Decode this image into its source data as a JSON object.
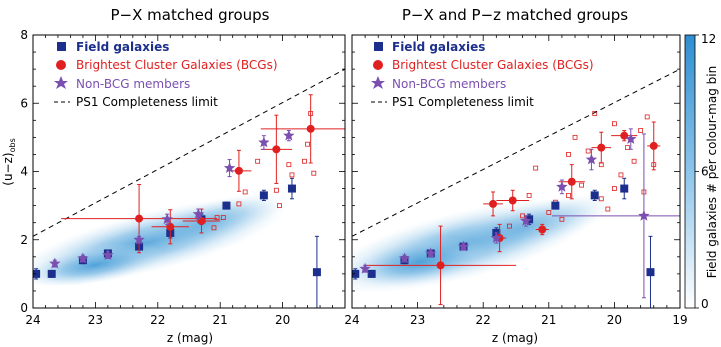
{
  "chart_data": [
    {
      "type": "scatter",
      "title": "P−X matched groups",
      "xlabel": "z (mag)",
      "ylabel": "(u−z)",
      "ylabel_sub": "obs",
      "xlim": [
        24,
        19
      ],
      "ylim": [
        0,
        8
      ],
      "xticks": [
        24,
        23,
        22,
        21,
        20
      ],
      "yticks": [
        0,
        2,
        4,
        6,
        8
      ],
      "legend_position": "top-left",
      "legend": [
        "Field galaxies",
        "Brightest Cluster Galaxies (BCGs)",
        "Non-BCG members",
        "PS1 Completeness limit"
      ],
      "completeness_line": [
        [
          24,
          2.1
        ],
        [
          19,
          7.0
        ]
      ],
      "series": [
        {
          "name": "Field galaxies",
          "color": "#1c2f8c",
          "marker": "square",
          "points": [
            [
              23.95,
              1.0,
              0,
              0.15
            ],
            [
              23.7,
              1.0,
              0,
              0.1
            ],
            [
              23.2,
              1.4,
              0,
              0.1
            ],
            [
              22.8,
              1.6,
              0,
              0.1
            ],
            [
              22.3,
              1.8,
              0,
              0.1
            ],
            [
              21.8,
              2.2,
              0,
              0.15
            ],
            [
              21.3,
              2.6,
              0,
              0.15
            ],
            [
              20.9,
              3.0,
              0,
              0.1
            ],
            [
              20.3,
              3.3,
              0,
              0.15
            ],
            [
              19.85,
              3.5,
              0,
              0.3
            ],
            [
              19.45,
              1.05,
              0,
              1.05
            ]
          ]
        },
        {
          "name": "Brightest Cluster Galaxies (BCGs)",
          "color": "#e02020",
          "marker": "circle",
          "points": [
            [
              22.3,
              2.62,
              1.25,
              1.0
            ],
            [
              21.8,
              2.38,
              0.3,
              0.5
            ],
            [
              21.3,
              2.55,
              0.3,
              0.35
            ],
            [
              20.7,
              4.02,
              0.2,
              0.6
            ],
            [
              20.1,
              4.65,
              0.25,
              1.0
            ],
            [
              19.55,
              5.25,
              0.8,
              1.0
            ]
          ]
        },
        {
          "name": "Non-BCG members",
          "color": "#7a4fb0",
          "marker": "star",
          "points": [
            [
              23.65,
              1.3,
              0,
              0.1
            ],
            [
              23.2,
              1.45,
              0,
              0.1
            ],
            [
              22.8,
              1.55,
              0,
              0.1
            ],
            [
              22.3,
              2.0,
              0,
              0.1
            ],
            [
              21.85,
              2.6,
              0,
              0.15
            ],
            [
              21.35,
              2.75,
              0,
              0.15
            ],
            [
              20.85,
              4.1,
              0,
              0.25
            ],
            [
              20.3,
              4.85,
              0,
              0.2
            ],
            [
              19.9,
              5.05,
              0,
              0.15
            ]
          ]
        }
      ],
      "scatter_points": [
        [
          20.3,
          3.3
        ],
        [
          20.1,
          3.45
        ],
        [
          20.05,
          3.0
        ],
        [
          19.85,
          3.9
        ],
        [
          19.65,
          4.3
        ],
        [
          19.6,
          4.8
        ],
        [
          19.55,
          5.7
        ],
        [
          19.5,
          3.95
        ],
        [
          19.9,
          4.2
        ],
        [
          20.4,
          4.3
        ],
        [
          21.05,
          2.65
        ],
        [
          21.1,
          2.35
        ],
        [
          20.95,
          2.65
        ],
        [
          20.7,
          3.05
        ],
        [
          20.6,
          3.4
        ]
      ]
    },
    {
      "type": "scatter",
      "title": "P−X and P−z matched groups",
      "xlabel": "z (mag)",
      "xlim": [
        24,
        19
      ],
      "ylim": [
        0,
        8
      ],
      "xticks": [
        24,
        23,
        22,
        21,
        20,
        19
      ],
      "legend_position": "top-left",
      "legend": [
        "Field galaxies",
        "Brightest Cluster Galaxies (BCGs)",
        "Non-BCG members",
        "PS1 Completeness limit"
      ],
      "completeness_line": [
        [
          24,
          2.1
        ],
        [
          19,
          7.0
        ]
      ],
      "colorbar": {
        "label": "Field galaxies # per colour-mag bin",
        "min": 0,
        "max": 12,
        "ticks": [
          0,
          6,
          12
        ]
      },
      "series": [
        {
          "name": "Field galaxies",
          "color": "#1c2f8c",
          "marker": "square",
          "points": [
            [
              23.95,
              1.0,
              0,
              0.15
            ],
            [
              23.7,
              1.0,
              0,
              0.1
            ],
            [
              23.2,
              1.4,
              0,
              0.1
            ],
            [
              22.8,
              1.6,
              0,
              0.1
            ],
            [
              22.3,
              1.8,
              0,
              0.1
            ],
            [
              21.8,
              2.2,
              0,
              0.15
            ],
            [
              21.3,
              2.6,
              0,
              0.15
            ],
            [
              20.9,
              3.0,
              0,
              0.1
            ],
            [
              20.3,
              3.3,
              0,
              0.15
            ],
            [
              19.85,
              3.5,
              0,
              0.3
            ],
            [
              19.45,
              1.05,
              0,
              1.05
            ]
          ]
        },
        {
          "name": "Brightest Cluster Galaxies (BCGs)",
          "color": "#e02020",
          "marker": "circle",
          "points": [
            [
              22.65,
              1.25,
              1.15,
              1.15
            ],
            [
              21.75,
              2.05,
              0.1,
              0.4
            ],
            [
              21.85,
              3.05,
              0.15,
              0.35
            ],
            [
              21.1,
              2.3,
              0.1,
              0.15
            ],
            [
              21.55,
              3.15,
              0.25,
              0.3
            ],
            [
              20.65,
              3.7,
              0.2,
              0.5
            ],
            [
              20.2,
              4.7,
              0.15,
              0.45
            ],
            [
              19.85,
              5.05,
              0.2,
              0.15
            ],
            [
              19.4,
              4.75,
              0.1,
              0.7
            ]
          ]
        },
        {
          "name": "Non-BCG members",
          "color": "#7a4fb0",
          "marker": "star",
          "points": [
            [
              23.8,
              1.15,
              0,
              0.1
            ],
            [
              23.2,
              1.45,
              0,
              0.1
            ],
            [
              22.8,
              1.6,
              0,
              0.1
            ],
            [
              22.3,
              1.8,
              0,
              0.1
            ],
            [
              21.8,
              2.05,
              0,
              0.15
            ],
            [
              21.35,
              2.55,
              0,
              0.15
            ],
            [
              20.8,
              3.55,
              0,
              0.2
            ],
            [
              20.35,
              4.35,
              0,
              0.3
            ],
            [
              19.75,
              4.95,
              0,
              0.3
            ],
            [
              19.55,
              2.7,
              1.4,
              2.4
            ]
          ]
        }
      ],
      "scatter_points": [
        [
          21.0,
          2.8
        ],
        [
          20.9,
          3.1
        ],
        [
          20.7,
          3.3
        ],
        [
          20.5,
          3.6
        ],
        [
          20.2,
          3.2
        ],
        [
          20.0,
          3.5
        ],
        [
          19.9,
          3.9
        ],
        [
          19.7,
          4.3
        ],
        [
          19.6,
          5.2
        ],
        [
          19.5,
          5.6
        ],
        [
          19.4,
          4.2
        ],
        [
          20.2,
          4.2
        ],
        [
          20.4,
          4.6
        ],
        [
          20.6,
          5.0
        ],
        [
          20.0,
          5.4
        ],
        [
          20.3,
          5.7
        ],
        [
          21.3,
          3.3
        ],
        [
          21.4,
          2.7
        ],
        [
          21.6,
          2.4
        ],
        [
          21.8,
          2.2
        ],
        [
          20.8,
          2.6
        ],
        [
          20.1,
          2.9
        ],
        [
          19.8,
          4.7
        ],
        [
          19.55,
          3.4
        ],
        [
          21.2,
          4.1
        ],
        [
          20.7,
          4.5
        ]
      ]
    }
  ]
}
